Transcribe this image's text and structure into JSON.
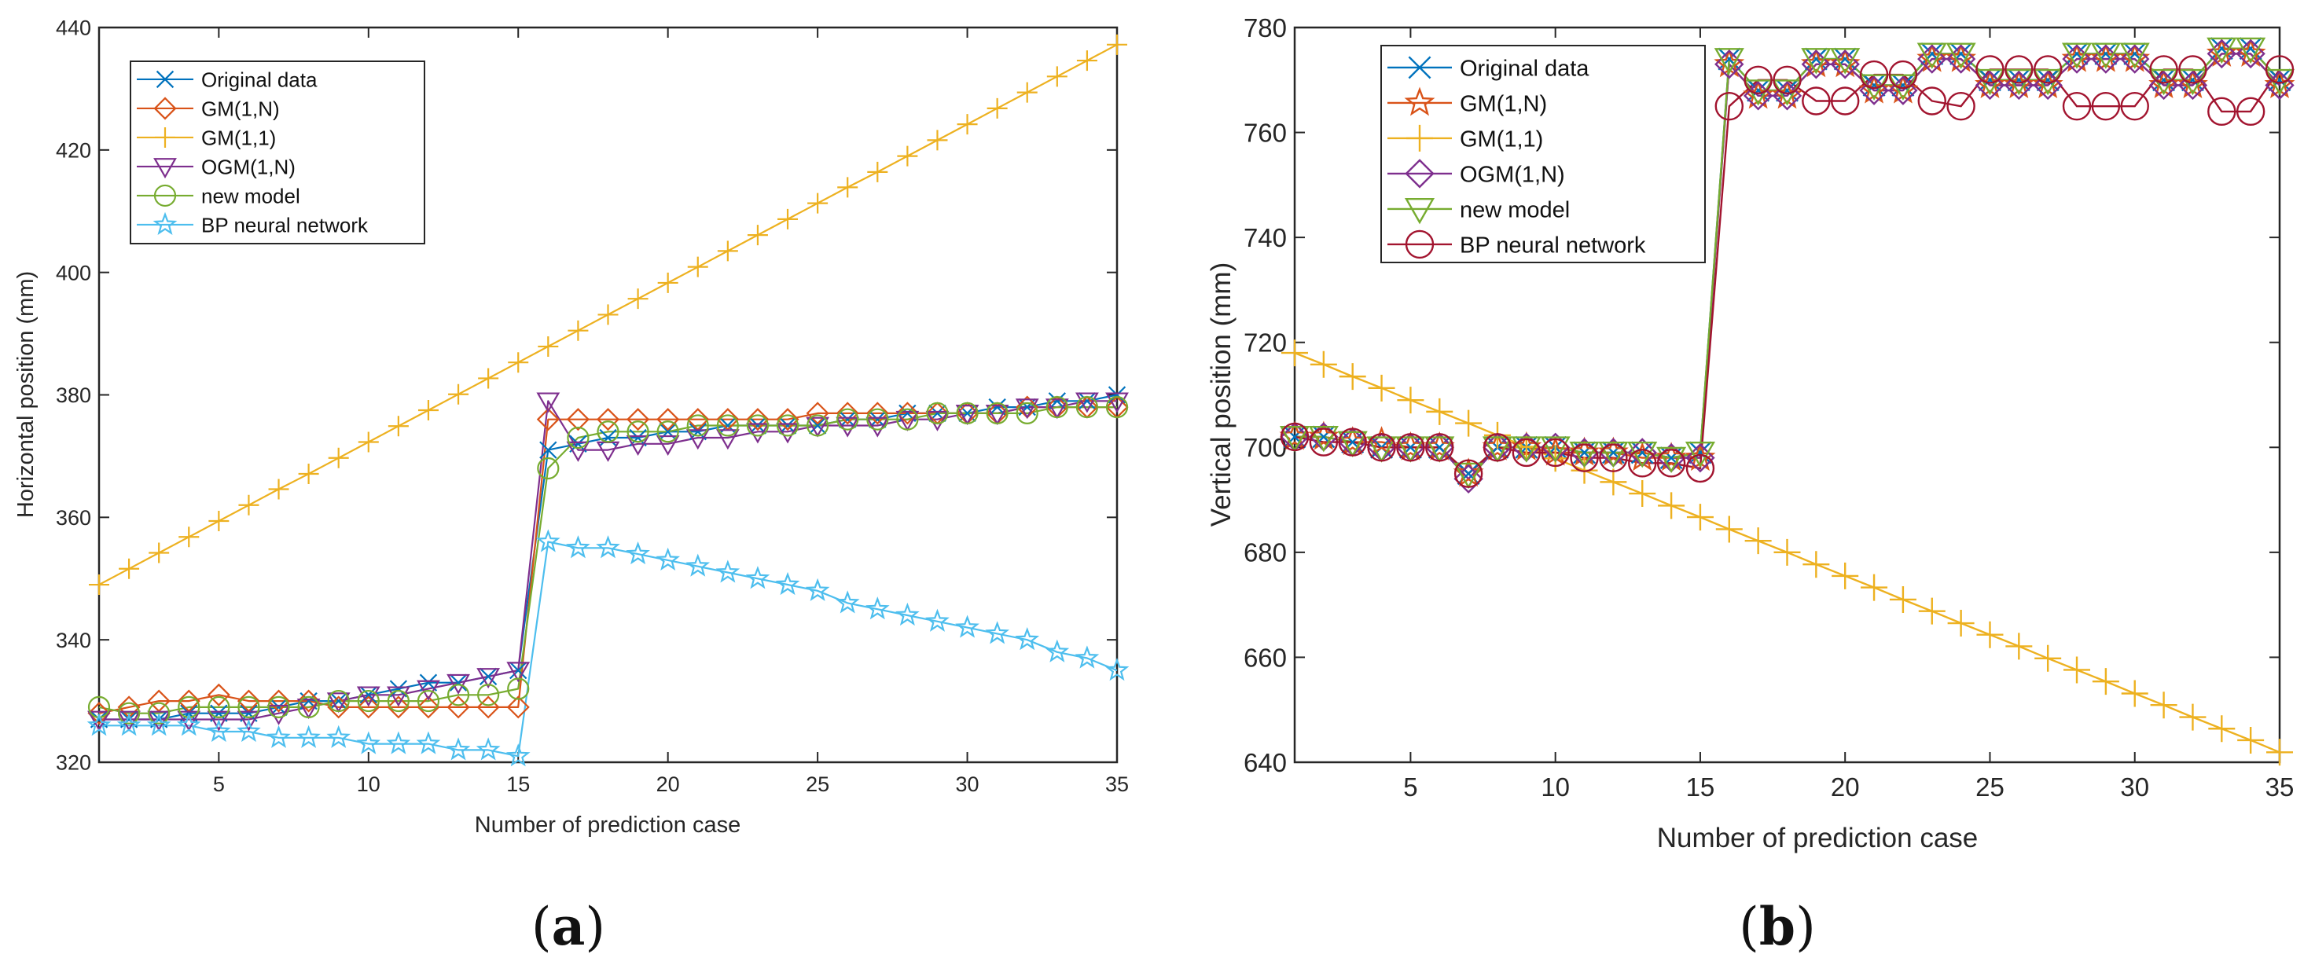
{
  "figure": {
    "panels": [
      {
        "id": "a",
        "label": "(a)",
        "label_letter": "a"
      },
      {
        "id": "b",
        "label": "(b)",
        "label_letter": "b"
      }
    ]
  },
  "chart_data": [
    {
      "id": "a",
      "type": "line",
      "title": "",
      "xlabel": "Number of prediction case",
      "ylabel": "Horizontal position (mm)",
      "xlim": [
        1,
        35
      ],
      "ylim": [
        320,
        440
      ],
      "xticks": [
        5,
        10,
        15,
        20,
        25,
        30,
        35
      ],
      "yticks": [
        320,
        340,
        360,
        380,
        400,
        420,
        440
      ],
      "grid": false,
      "legend_position": "top-left",
      "x": [
        1,
        2,
        3,
        4,
        5,
        6,
        7,
        8,
        9,
        10,
        11,
        12,
        13,
        14,
        15,
        16,
        17,
        18,
        19,
        20,
        21,
        22,
        23,
        24,
        25,
        26,
        27,
        28,
        29,
        30,
        31,
        32,
        33,
        34,
        35
      ],
      "series": [
        {
          "name": "Original data",
          "color": "#0072BD",
          "marker": "x",
          "values": [
            327,
            327,
            327,
            328,
            328,
            328,
            329,
            330,
            330,
            331,
            332,
            333,
            333,
            334,
            335,
            371,
            372,
            373,
            373,
            374,
            374,
            375,
            375,
            375,
            375,
            376,
            376,
            377,
            377,
            377,
            378,
            378,
            379,
            379,
            380
          ]
        },
        {
          "name": "GM(1,N)",
          "color": "#D95319",
          "marker": "diamond",
          "values": [
            328,
            329,
            330,
            330,
            331,
            330,
            330,
            330,
            329,
            329,
            329,
            329,
            329,
            329,
            329,
            376,
            376,
            376,
            376,
            376,
            376,
            376,
            376,
            376,
            377,
            377,
            377,
            377,
            377,
            377,
            377,
            378,
            378,
            378,
            378
          ]
        },
        {
          "name": "GM(1,1)",
          "color": "#EDB120",
          "marker": "plus",
          "values": [
            349.0,
            351.6,
            354.2,
            356.8,
            359.4,
            362.0,
            364.6,
            367.1,
            369.7,
            372.3,
            374.9,
            377.5,
            380.1,
            382.7,
            385.3,
            387.9,
            390.5,
            393.1,
            395.7,
            398.3,
            400.9,
            403.5,
            406.1,
            408.7,
            411.3,
            413.9,
            416.4,
            419.0,
            421.6,
            424.2,
            426.8,
            429.4,
            432.0,
            434.6,
            437.2
          ]
        },
        {
          "name": "OGM(1,N)",
          "color": "#7E2F8E",
          "marker": "triangle-down",
          "values": [
            327,
            327,
            327,
            327,
            327,
            327,
            328,
            329,
            330,
            331,
            331,
            332,
            333,
            334,
            335,
            379,
            371,
            371,
            372,
            372,
            373,
            373,
            374,
            374,
            375,
            375,
            375,
            376,
            376,
            377,
            377,
            378,
            378,
            379,
            379
          ]
        },
        {
          "name": "new model",
          "color": "#77AC30",
          "marker": "circle",
          "values": [
            329,
            328,
            328,
            329,
            329,
            329,
            329,
            329,
            330,
            330,
            330,
            330,
            331,
            331,
            332,
            368,
            373,
            374,
            374,
            374,
            375,
            375,
            375,
            375,
            375,
            376,
            376,
            376,
            377,
            377,
            377,
            377,
            378,
            378,
            378
          ]
        },
        {
          "name": "BP neural network",
          "color": "#4DBEEE",
          "marker": "pentagram",
          "values": [
            326,
            326,
            326,
            326,
            325,
            325,
            324,
            324,
            324,
            323,
            323,
            323,
            322,
            322,
            321,
            356,
            355,
            355,
            354,
            353,
            352,
            351,
            350,
            349,
            348,
            346,
            345,
            344,
            343,
            342,
            341,
            340,
            338,
            337,
            335
          ]
        }
      ]
    },
    {
      "id": "b",
      "type": "line",
      "title": "",
      "xlabel": "Number of prediction case",
      "ylabel": "Vertical position (mm)",
      "xlim": [
        1,
        35
      ],
      "ylim": [
        640,
        780
      ],
      "xticks": [
        5,
        10,
        15,
        20,
        25,
        30,
        35
      ],
      "yticks": [
        640,
        660,
        680,
        700,
        720,
        740,
        760,
        780
      ],
      "grid": false,
      "legend_position": "top-left",
      "x": [
        1,
        2,
        3,
        4,
        5,
        6,
        7,
        8,
        9,
        10,
        11,
        12,
        13,
        14,
        15,
        16,
        17,
        18,
        19,
        20,
        21,
        22,
        23,
        24,
        25,
        26,
        27,
        28,
        29,
        30,
        31,
        32,
        33,
        34,
        35
      ],
      "series": [
        {
          "name": "Original data",
          "color": "#0072BD",
          "marker": "x",
          "values": [
            702,
            702,
            701,
            700,
            700,
            700,
            695,
            700,
            700,
            700,
            699,
            699,
            699,
            698,
            699,
            774,
            768,
            768,
            774,
            774,
            769,
            769,
            775,
            775,
            770,
            770,
            770,
            775,
            775,
            775,
            770,
            770,
            776,
            776,
            770
          ]
        },
        {
          "name": "GM(1,N)",
          "color": "#D95319",
          "marker": "pentagram",
          "values": [
            702,
            702,
            701,
            701,
            700,
            700,
            695,
            700,
            700,
            699,
            699,
            699,
            698,
            698,
            698,
            773,
            767,
            767,
            773,
            773,
            768,
            768,
            774,
            774,
            769,
            769,
            769,
            774,
            774,
            774,
            769,
            769,
            775,
            775,
            769
          ]
        },
        {
          "name": "GM(1,1)",
          "color": "#EDB120",
          "marker": "plus",
          "values": [
            718.0,
            715.8,
            713.5,
            711.3,
            709.0,
            706.8,
            704.6,
            702.3,
            700.1,
            697.9,
            695.6,
            693.4,
            691.2,
            688.9,
            686.7,
            684.4,
            682.2,
            680.0,
            677.7,
            675.5,
            673.3,
            671.0,
            668.8,
            666.5,
            664.3,
            662.1,
            659.8,
            657.6,
            655.4,
            653.1,
            650.9,
            648.6,
            646.4,
            644.2,
            641.9
          ]
        },
        {
          "name": "OGM(1,N)",
          "color": "#7E2F8E",
          "marker": "diamond",
          "values": [
            702,
            702,
            701,
            700,
            700,
            700,
            694,
            700,
            700,
            700,
            699,
            699,
            699,
            698,
            698,
            773,
            767,
            767,
            773,
            773,
            768,
            768,
            774,
            774,
            769,
            769,
            769,
            774,
            774,
            774,
            769,
            769,
            775,
            775,
            769
          ]
        },
        {
          "name": "new model",
          "color": "#77AC30",
          "marker": "triangle-down",
          "values": [
            702,
            702,
            701,
            700,
            700,
            700,
            695,
            700,
            700,
            700,
            699,
            699,
            699,
            698,
            699,
            774,
            768,
            768,
            774,
            774,
            769,
            769,
            775,
            775,
            770,
            770,
            770,
            775,
            775,
            775,
            770,
            770,
            776,
            776,
            770
          ]
        },
        {
          "name": "BP  neural network",
          "color": "#A2142F",
          "marker": "circle",
          "values": [
            702,
            701,
            701,
            700,
            700,
            700,
            695,
            700,
            699,
            699,
            698,
            698,
            697,
            697,
            696,
            765,
            770,
            770,
            766,
            766,
            771,
            771,
            766,
            765,
            772,
            772,
            772,
            765,
            765,
            765,
            772,
            772,
            764,
            764,
            772
          ]
        }
      ]
    }
  ]
}
